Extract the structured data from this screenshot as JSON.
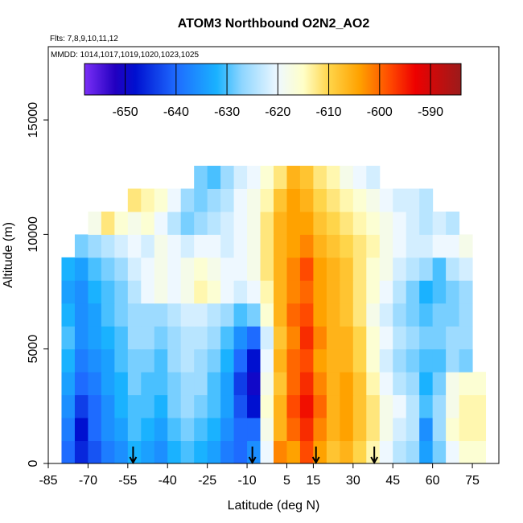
{
  "chart_data": {
    "type": "heatmap",
    "title": "ATOM3 Northbound O2N2_AO2",
    "subtitle": "Flts: 7,8,9,10,11,12",
    "annotation": "MMDD: 1014,1017,1019,1020,1023,1025",
    "x_label": "Latitude (deg N)",
    "y_label": "Altitude (m)",
    "xlim": [
      -85,
      85
    ],
    "xticks": [
      -85,
      -70,
      -55,
      -40,
      -25,
      -10,
      5,
      15,
      30,
      45,
      60,
      75
    ],
    "ylim": [
      0,
      18200
    ],
    "yticks": [
      0,
      5000,
      10000,
      15000
    ],
    "x_bins": [
      -80,
      -75,
      -70,
      -65,
      -60,
      -55,
      -50,
      -45,
      -40,
      -35,
      -30,
      -25,
      -20,
      -15,
      -10,
      -5,
      0,
      5,
      10,
      15,
      20,
      25,
      30,
      35,
      40,
      45,
      50,
      55,
      60,
      65,
      70,
      75,
      80
    ],
    "y_bins": [
      0,
      1000,
      2000,
      3000,
      4000,
      5000,
      6000,
      7000,
      8000,
      9000,
      10000,
      11000,
      12000,
      13000
    ],
    "values": [
      [
        -640,
        -646,
        -642,
        -638,
        -636,
        -632,
        -634,
        -636,
        -632,
        -630,
        -632,
        -634,
        -638,
        -640,
        -636,
        -620,
        -602,
        -604,
        -598,
        -604,
        -608,
        -606,
        -610,
        -614,
        -620,
        -624,
        -626,
        -634,
        -628,
        -620,
        -616,
        -616
      ],
      [
        -638,
        -648,
        -640,
        -636,
        -634,
        -630,
        -632,
        -634,
        -630,
        -628,
        -630,
        -632,
        -636,
        -640,
        -640,
        -618,
        -606,
        -600,
        -596,
        -602,
        -606,
        -604,
        -608,
        -612,
        -618,
        -622,
        -624,
        -636,
        -626,
        -616,
        -614,
        -614
      ],
      [
        -636,
        -644,
        -640,
        -636,
        -632,
        -630,
        -630,
        -632,
        -628,
        -626,
        -628,
        -630,
        -634,
        -642,
        -648,
        -616,
        -606,
        -598,
        -594,
        -600,
        -606,
        -604,
        -608,
        -612,
        -618,
        -620,
        -624,
        -630,
        -626,
        -618,
        -614,
        -614
      ],
      [
        -634,
        -640,
        -638,
        -634,
        -632,
        -628,
        -630,
        -630,
        -628,
        -626,
        -626,
        -630,
        -634,
        -644,
        -650,
        -618,
        -608,
        -600,
        -596,
        -602,
        -606,
        -604,
        -608,
        -614,
        -620,
        -624,
        -626,
        -632,
        -628,
        -618,
        -616,
        -616
      ],
      [
        -632,
        -638,
        -636,
        -634,
        -630,
        -628,
        -628,
        -630,
        -626,
        -624,
        -626,
        -628,
        -632,
        -640,
        -648,
        -620,
        -606,
        -600,
        -598,
        -604,
        -606,
        -606,
        -610,
        -616,
        -622,
        -626,
        -628,
        -630,
        -630,
        -626,
        -628,
        null
      ],
      [
        -630,
        -636,
        -634,
        -632,
        -630,
        -626,
        -626,
        -628,
        -626,
        -624,
        -624,
        -626,
        -630,
        -636,
        -640,
        -622,
        -608,
        -602,
        -596,
        -602,
        -606,
        -606,
        -610,
        -616,
        -620,
        -624,
        -626,
        -628,
        -628,
        -626,
        -626,
        null
      ],
      [
        -632,
        -636,
        -634,
        -630,
        -628,
        -626,
        -626,
        -626,
        -624,
        -622,
        -622,
        -624,
        -626,
        -630,
        -628,
        -616,
        -606,
        -600,
        -598,
        -604,
        -606,
        -608,
        -612,
        -618,
        -622,
        -626,
        -628,
        -630,
        -628,
        -628,
        -626,
        null
      ],
      [
        -634,
        -636,
        -632,
        -630,
        -628,
        -624,
        -620,
        -618,
        -620,
        -618,
        -614,
        -616,
        -620,
        -622,
        -620,
        -614,
        -606,
        -602,
        -600,
        -604,
        -606,
        -608,
        -612,
        -616,
        -620,
        -624,
        -628,
        -632,
        -630,
        -628,
        -626,
        null
      ],
      [
        -632,
        -634,
        -630,
        -628,
        -626,
        -622,
        -620,
        -618,
        -620,
        -618,
        -616,
        -618,
        -620,
        -620,
        -618,
        -612,
        -606,
        -602,
        -598,
        -604,
        -606,
        -608,
        -612,
        -616,
        -618,
        -622,
        -624,
        -626,
        -630,
        -624,
        -622,
        null
      ],
      [
        null,
        -628,
        -626,
        -624,
        -622,
        -620,
        -622,
        -618,
        -620,
        -622,
        -620,
        -620,
        -622,
        -620,
        -618,
        -612,
        -606,
        -604,
        -602,
        -606,
        -608,
        -610,
        -612,
        -614,
        -618,
        -620,
        -622,
        -622,
        -620,
        -620,
        -618,
        null
      ],
      [
        null,
        null,
        -618,
        -612,
        -616,
        -618,
        -616,
        -620,
        -624,
        -628,
        -626,
        -624,
        -622,
        -620,
        -618,
        -612,
        -606,
        -604,
        -604,
        -608,
        -610,
        -612,
        -614,
        -616,
        -618,
        -620,
        -622,
        -624,
        -622,
        -624,
        null,
        null
      ],
      [
        null,
        null,
        null,
        null,
        null,
        -612,
        -614,
        -616,
        -620,
        -626,
        -628,
        -626,
        -624,
        -620,
        -618,
        -614,
        -608,
        -604,
        -606,
        -610,
        -612,
        -614,
        -616,
        -618,
        -620,
        -622,
        -622,
        -624,
        null,
        null,
        null,
        null
      ],
      [
        null,
        null,
        null,
        null,
        null,
        null,
        null,
        null,
        null,
        null,
        -628,
        -630,
        -626,
        -622,
        -620,
        -616,
        -612,
        -606,
        -608,
        -612,
        -614,
        -618,
        -620,
        -622,
        null,
        null,
        null,
        null,
        null,
        null,
        null,
        null
      ]
    ],
    "colorbar": {
      "lim": [
        -658,
        -584
      ],
      "ticks": [
        -650,
        -640,
        -630,
        -620,
        -610,
        -600,
        -590
      ]
    },
    "colorscale": [
      [
        -658,
        "#7b2ff7"
      ],
      [
        -652,
        "#2200c0"
      ],
      [
        -648,
        "#0010d0"
      ],
      [
        -640,
        "#1e6bff"
      ],
      [
        -632,
        "#1ab2ff"
      ],
      [
        -627,
        "#8fd6ff"
      ],
      [
        -620,
        "#eef8ff"
      ],
      [
        -615,
        "#ffffc8"
      ],
      [
        -610,
        "#ffd54a"
      ],
      [
        -604,
        "#ffa200"
      ],
      [
        -598,
        "#ff4a00"
      ],
      [
        -593,
        "#ee0000"
      ],
      [
        -584,
        "#9b1b1b"
      ]
    ],
    "arrows": [
      -53,
      -8,
      16,
      38
    ]
  }
}
